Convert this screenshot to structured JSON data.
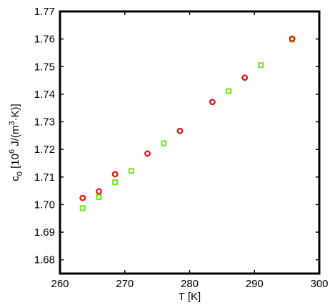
{
  "chart_data": {
    "type": "scatter",
    "xlabel": "T [K]",
    "ylabel": {
      "base": "c",
      "sub": "0",
      "pre": " [10",
      "exp": "6",
      "mid": " J/(m",
      "exp2": "3",
      "post": "·K)]"
    },
    "xlim": [
      260,
      300
    ],
    "ylim": [
      1.675,
      1.77
    ],
    "x_ticks": [
      "260",
      "270",
      "280",
      "290",
      "300"
    ],
    "x_tick_values": [
      260,
      270,
      280,
      290,
      300
    ],
    "y_ticks": [
      "1.68",
      "1.69",
      "1.70",
      "1.71",
      "1.72",
      "1.73",
      "1.74",
      "1.75",
      "1.76",
      "1.77"
    ],
    "y_tick_values": [
      1.68,
      1.69,
      1.7,
      1.71,
      1.72,
      1.73,
      1.74,
      1.75,
      1.76,
      1.77
    ],
    "grid": false,
    "series": [
      {
        "marker": "square",
        "color": "#7de330",
        "x": [
          263.5,
          266.0,
          268.5,
          271.0,
          276.0,
          286.0,
          291.0,
          295.8
        ],
        "y": [
          1.6987,
          1.7027,
          1.7081,
          1.7122,
          1.7222,
          1.7411,
          1.7505,
          1.7598
        ]
      },
      {
        "marker": "circle",
        "color": "#e01010",
        "x": [
          263.5,
          266.0,
          268.5,
          273.5,
          278.5,
          283.5,
          288.5,
          295.8
        ],
        "y": [
          1.7024,
          1.7048,
          1.711,
          1.7185,
          1.7267,
          1.7372,
          1.746,
          1.7601
        ]
      }
    ]
  }
}
